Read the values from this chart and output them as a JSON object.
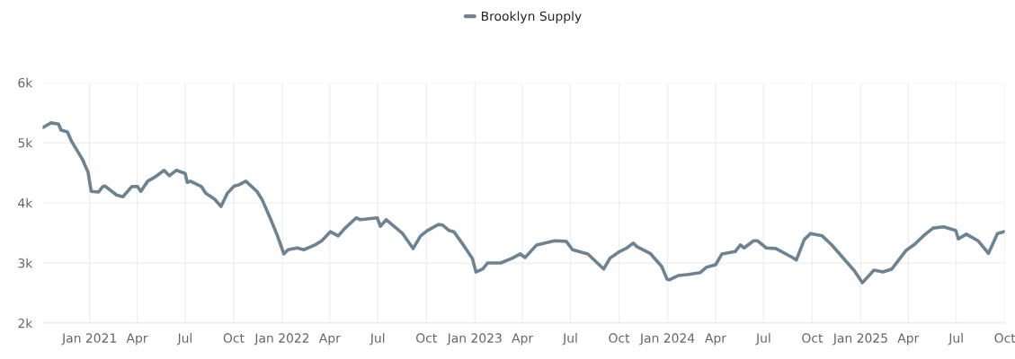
{
  "chart_data": {
    "type": "line",
    "x": [
      "2020-10-04",
      "2020-10-20",
      "2020-11-03",
      "2020-11-08",
      "2020-11-20",
      "2020-11-28",
      "2020-12-18",
      "2020-12-29",
      "2021-01-04",
      "2021-01-18",
      "2021-01-26",
      "2021-01-30",
      "2021-02-21",
      "2021-03-05",
      "2021-03-22",
      "2021-04-02",
      "2021-04-08",
      "2021-04-21",
      "2021-05-05",
      "2021-05-22",
      "2021-06-01",
      "2021-06-14",
      "2021-07-01",
      "2021-07-05",
      "2021-07-11",
      "2021-08-01",
      "2021-08-09",
      "2021-08-26",
      "2021-09-07",
      "2021-09-19",
      "2021-10-02",
      "2021-10-11",
      "2021-10-24",
      "2021-11-14",
      "2021-11-24",
      "2021-12-09",
      "2021-12-23",
      "2022-01-04",
      "2022-01-12",
      "2022-01-29",
      "2022-02-11",
      "2022-03-04",
      "2022-03-17",
      "2022-04-02",
      "2022-04-17",
      "2022-04-29",
      "2022-05-21",
      "2022-05-29",
      "2022-06-30",
      "2022-07-06",
      "2022-07-17",
      "2022-08-17",
      "2022-09-06",
      "2022-09-20",
      "2022-10-03",
      "2022-10-24",
      "2022-11-01",
      "2022-11-13",
      "2022-11-22",
      "2022-12-10",
      "2022-12-27",
      "2023-01-03",
      "2023-01-16",
      "2023-01-25",
      "2023-02-19",
      "2023-03-13",
      "2023-03-28",
      "2023-04-06",
      "2023-04-28",
      "2023-06-01",
      "2023-06-23",
      "2023-07-05",
      "2023-08-03",
      "2023-09-02",
      "2023-09-14",
      "2023-10-02",
      "2023-10-14",
      "2023-10-28",
      "2023-11-04",
      "2023-11-29",
      "2023-12-21",
      "2023-12-31",
      "2024-01-04",
      "2024-01-21",
      "2024-02-10",
      "2024-03-03",
      "2024-03-15",
      "2024-04-01",
      "2024-04-13",
      "2024-05-08",
      "2024-05-18",
      "2024-05-25",
      "2024-06-12",
      "2024-06-19",
      "2024-07-06",
      "2024-07-24",
      "2024-08-25",
      "2024-09-01",
      "2024-09-16",
      "2024-09-28",
      "2024-10-20",
      "2024-11-06",
      "2024-11-28",
      "2024-12-20",
      "2025-01-04",
      "2025-01-26",
      "2025-02-12",
      "2025-03-01",
      "2025-03-28",
      "2025-04-13",
      "2025-05-01",
      "2025-05-18",
      "2025-06-07",
      "2025-06-30",
      "2025-07-05",
      "2025-07-20",
      "2025-08-11",
      "2025-08-31",
      "2025-09-17",
      "2025-09-29"
    ],
    "series": [
      {
        "name": "Brooklyn Supply",
        "color": "#6e8391",
        "values": [
          5250,
          5330,
          5310,
          5210,
          5180,
          5020,
          4730,
          4510,
          4190,
          4180,
          4270,
          4280,
          4130,
          4100,
          4270,
          4270,
          4190,
          4360,
          4430,
          4540,
          4450,
          4540,
          4490,
          4340,
          4360,
          4270,
          4160,
          4060,
          3940,
          4160,
          4280,
          4300,
          4360,
          4190,
          4050,
          3750,
          3450,
          3150,
          3220,
          3250,
          3220,
          3300,
          3370,
          3520,
          3450,
          3570,
          3750,
          3720,
          3750,
          3610,
          3720,
          3490,
          3240,
          3450,
          3540,
          3640,
          3630,
          3540,
          3520,
          3300,
          3080,
          2850,
          2900,
          3000,
          3000,
          3080,
          3150,
          3090,
          3300,
          3370,
          3360,
          3220,
          3150,
          2900,
          3080,
          3190,
          3240,
          3330,
          3270,
          3160,
          2940,
          2730,
          2720,
          2790,
          2810,
          2840,
          2930,
          2970,
          3150,
          3190,
          3300,
          3250,
          3370,
          3370,
          3250,
          3240,
          3090,
          3050,
          3390,
          3490,
          3450,
          3310,
          3090,
          2870,
          2670,
          2880,
          2850,
          2900,
          3210,
          3310,
          3460,
          3580,
          3600,
          3540,
          3400,
          3480,
          3370,
          3160,
          3490,
          3520
        ]
      }
    ],
    "xlim": [
      "2020-10-04",
      "2025-10-01"
    ],
    "xticks": [
      {
        "value": "2021-01-01",
        "label": "Jan 2021"
      },
      {
        "value": "2021-04-01",
        "label": "Apr"
      },
      {
        "value": "2021-07-01",
        "label": "Jul"
      },
      {
        "value": "2021-10-01",
        "label": "Oct"
      },
      {
        "value": "2022-01-01",
        "label": "Jan 2022"
      },
      {
        "value": "2022-04-01",
        "label": "Apr"
      },
      {
        "value": "2022-07-01",
        "label": "Jul"
      },
      {
        "value": "2022-10-01",
        "label": "Oct"
      },
      {
        "value": "2023-01-01",
        "label": "Jan 2023"
      },
      {
        "value": "2023-04-01",
        "label": "Apr"
      },
      {
        "value": "2023-07-01",
        "label": "Jul"
      },
      {
        "value": "2023-10-01",
        "label": "Oct"
      },
      {
        "value": "2024-01-01",
        "label": "Jan 2024"
      },
      {
        "value": "2024-04-01",
        "label": "Apr"
      },
      {
        "value": "2024-07-01",
        "label": "Jul"
      },
      {
        "value": "2024-10-01",
        "label": "Oct"
      },
      {
        "value": "2025-01-01",
        "label": "Jan 2025"
      },
      {
        "value": "2025-04-01",
        "label": "Apr"
      },
      {
        "value": "2025-07-01",
        "label": "Jul"
      },
      {
        "value": "2025-10-01",
        "label": "Oct"
      }
    ],
    "ylim": [
      2000,
      6000
    ],
    "yticks": [
      {
        "value": 2000,
        "label": "2k"
      },
      {
        "value": 3000,
        "label": "3k"
      },
      {
        "value": 4000,
        "label": "4k"
      },
      {
        "value": 5000,
        "label": "5k"
      },
      {
        "value": 6000,
        "label": "6k"
      }
    ],
    "grid": true,
    "legend": "top",
    "marker": "none",
    "line_style": "solid"
  }
}
